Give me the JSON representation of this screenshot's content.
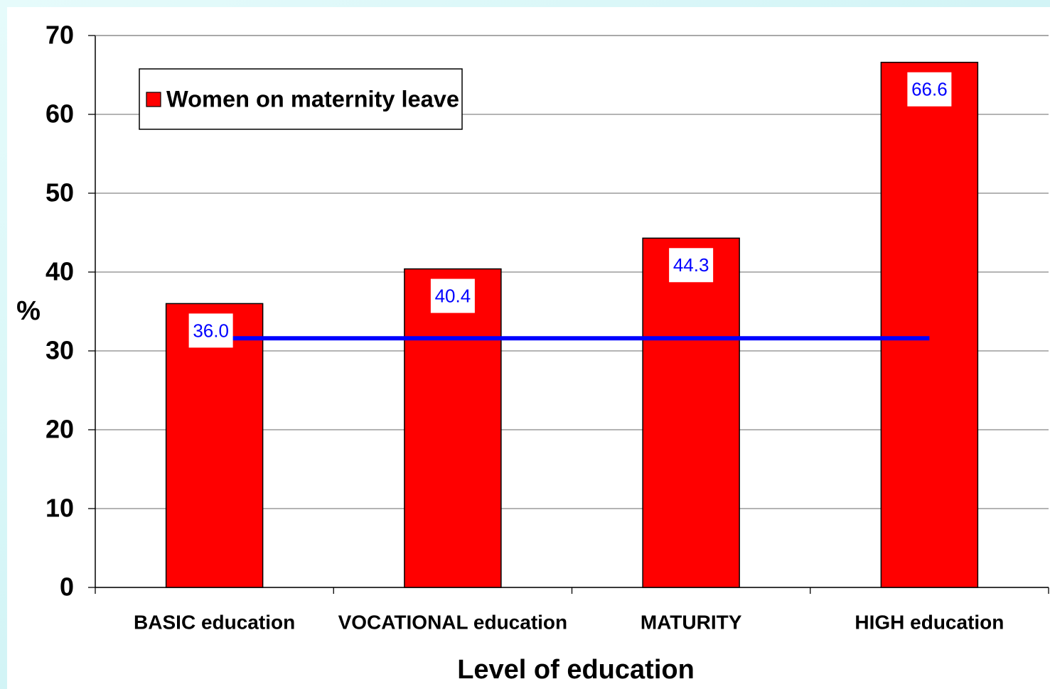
{
  "chart_data": {
    "type": "bar",
    "categories": [
      "BASIC education",
      "VOCATIONAL education",
      "MATURITY",
      "HIGH education"
    ],
    "series": [
      {
        "name": "Women on maternity leave",
        "color": "#ff0000",
        "values": [
          36.0,
          40.4,
          44.3,
          66.6
        ],
        "value_labels": [
          "36.0",
          "40.4",
          "44.3",
          "66.6"
        ]
      }
    ],
    "line": {
      "color": "#0000ff",
      "values": [
        31.6,
        31.6,
        31.6,
        31.6
      ]
    },
    "ylabel": "%",
    "xlabel": "Level of education",
    "ylim": [
      0,
      70
    ],
    "yticks": [
      0,
      10,
      20,
      30,
      40,
      50,
      60,
      70
    ],
    "grid": true,
    "legend": "upper left"
  }
}
